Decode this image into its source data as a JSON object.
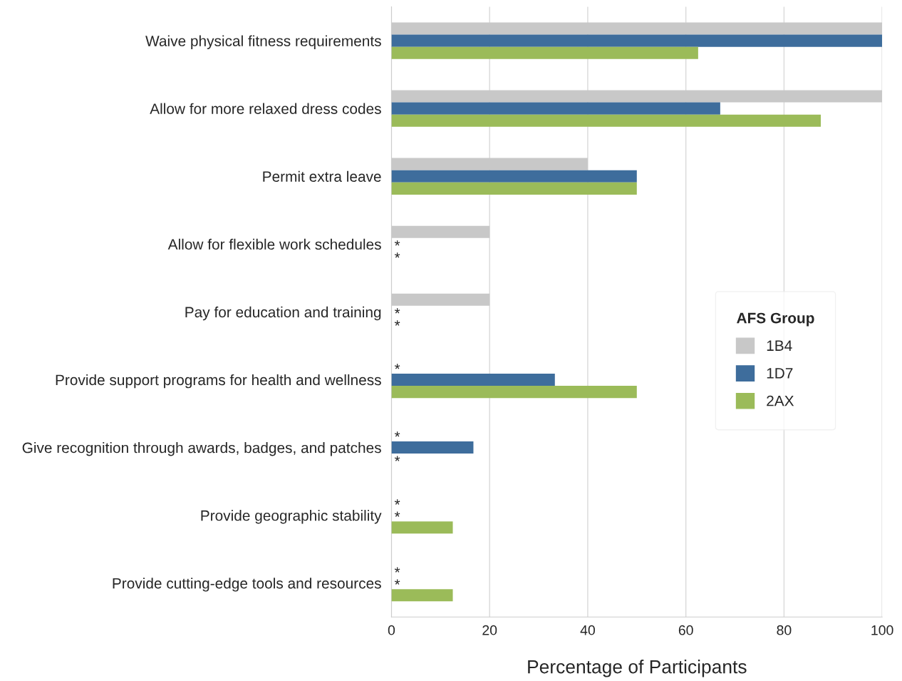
{
  "chart_data": {
    "type": "bar",
    "orientation": "horizontal",
    "categories": [
      "Waive physical fitness requirements",
      "Allow for more relaxed dress codes",
      "Permit extra leave",
      "Allow for flexible work schedules",
      "Pay for education and training",
      "Provide support programs for health and wellness",
      "Give recognition through awards, badges, and patches",
      "Provide geographic stability",
      "Provide cutting-edge tools and resources"
    ],
    "series": [
      {
        "name": "1B4",
        "color": "#c8c8c8",
        "values": [
          100,
          100,
          40,
          20,
          20,
          null,
          null,
          null,
          null
        ],
        "value_labels": [
          null,
          null,
          null,
          null,
          null,
          "*",
          "*",
          "*",
          "*"
        ]
      },
      {
        "name": "1D7",
        "color": "#3e6d9c",
        "values": [
          100,
          67,
          50,
          null,
          null,
          33.3,
          16.7,
          null,
          null
        ],
        "value_labels": [
          null,
          null,
          null,
          "*",
          "*",
          null,
          null,
          "*",
          "*"
        ]
      },
      {
        "name": "2AX",
        "color": "#9bbb59",
        "values": [
          62.5,
          87.5,
          50,
          null,
          null,
          50,
          null,
          12.5,
          12.5
        ],
        "value_labels": [
          null,
          null,
          null,
          "*",
          "*",
          null,
          "*",
          null,
          null
        ]
      }
    ],
    "xlabel": "Percentage of Participants",
    "legend_title": "AFS Group",
    "xlim": [
      0,
      100
    ],
    "xticks": [
      0,
      20,
      40,
      60,
      80,
      100
    ],
    "grid": "x",
    "legend": "right"
  }
}
